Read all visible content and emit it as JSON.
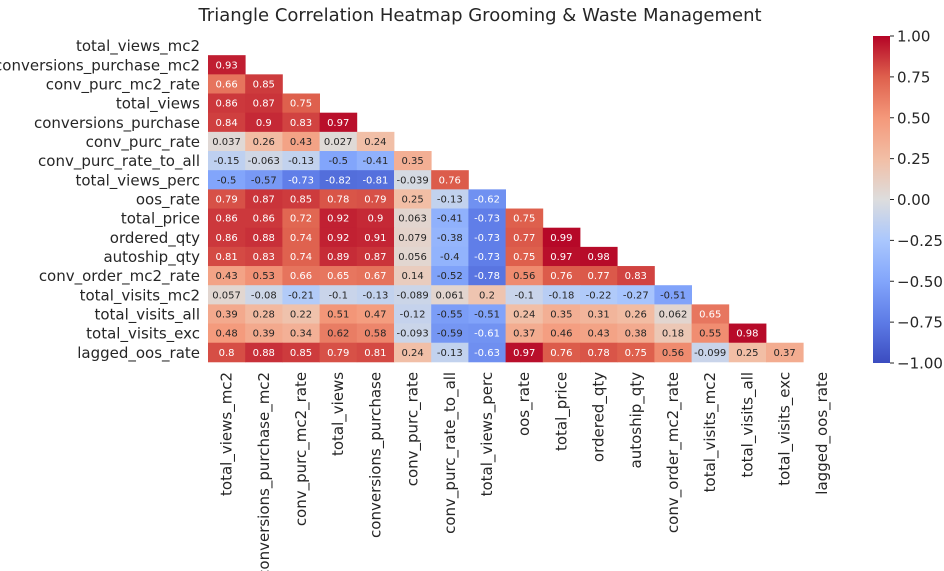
{
  "chart_data": {
    "type": "heatmap",
    "title": "Triangle Correlation Heatmap Grooming & Waste Management",
    "variables": [
      "total_views_mc2",
      "conversions_purchase_mc2",
      "conv_purc_mc2_rate",
      "total_views",
      "conversions_purchase",
      "conv_purc_rate",
      "conv_purc_rate_to_all",
      "total_views_perc",
      "oos_rate",
      "total_price",
      "ordered_qty",
      "autoship_qty",
      "conv_order_mc2_rate",
      "total_visits_mc2",
      "total_visits_all",
      "total_visits_exc",
      "lagged_oos_rate"
    ],
    "matrix": [
      [],
      [
        "0.93"
      ],
      [
        "0.66",
        "0.85"
      ],
      [
        "0.86",
        "0.87",
        "0.75"
      ],
      [
        "0.84",
        "0.9",
        "0.83",
        "0.97"
      ],
      [
        "0.037",
        "0.26",
        "0.43",
        "0.027",
        "0.24"
      ],
      [
        "-0.15",
        "-0.063",
        "-0.13",
        "-0.5",
        "-0.41",
        "0.35"
      ],
      [
        "-0.5",
        "-0.57",
        "-0.73",
        "-0.82",
        "-0.81",
        "-0.039",
        "0.76"
      ],
      [
        "0.79",
        "0.87",
        "0.85",
        "0.78",
        "0.79",
        "0.25",
        "-0.13",
        "-0.62"
      ],
      [
        "0.86",
        "0.86",
        "0.72",
        "0.92",
        "0.9",
        "0.063",
        "-0.41",
        "-0.73",
        "0.75"
      ],
      [
        "0.86",
        "0.88",
        "0.74",
        "0.92",
        "0.91",
        "0.079",
        "-0.38",
        "-0.73",
        "0.77",
        "0.99"
      ],
      [
        "0.81",
        "0.83",
        "0.74",
        "0.89",
        "0.87",
        "0.056",
        "-0.4",
        "-0.73",
        "0.75",
        "0.97",
        "0.98"
      ],
      [
        "0.43",
        "0.53",
        "0.66",
        "0.65",
        "0.67",
        "0.14",
        "-0.52",
        "-0.78",
        "0.56",
        "0.76",
        "0.77",
        "0.83"
      ],
      [
        "0.057",
        "-0.08",
        "-0.21",
        "-0.1",
        "-0.13",
        "-0.089",
        "0.061",
        "0.2",
        "-0.1",
        "-0.18",
        "-0.22",
        "-0.27",
        "-0.51"
      ],
      [
        "0.39",
        "0.28",
        "0.22",
        "0.51",
        "0.47",
        "-0.12",
        "-0.55",
        "-0.51",
        "0.24",
        "0.35",
        "0.31",
        "0.26",
        "0.062",
        "0.65"
      ],
      [
        "0.48",
        "0.39",
        "0.34",
        "0.62",
        "0.58",
        "-0.093",
        "-0.59",
        "-0.61",
        "0.37",
        "0.46",
        "0.43",
        "0.38",
        "0.18",
        "0.55",
        "0.98"
      ],
      [
        "0.8",
        "0.88",
        "0.85",
        "0.79",
        "0.81",
        "0.24",
        "-0.13",
        "-0.63",
        "0.97",
        "0.76",
        "0.78",
        "0.75",
        "0.56",
        "-0.099",
        "0.25",
        "0.37"
      ]
    ],
    "colormap": "coolwarm",
    "vmin": -1.0,
    "vmax": 1.0,
    "colorbar_ticks": [
      "1.00",
      "0.75",
      "0.50",
      "0.25",
      "0.00",
      "−0.25",
      "−0.50",
      "−0.75",
      "−1.00"
    ],
    "colorbar_tick_values": [
      1.0,
      0.75,
      0.5,
      0.25,
      0.0,
      -0.25,
      -0.5,
      -0.75,
      -1.0
    ],
    "mask": "upper triangle and diagonal"
  }
}
